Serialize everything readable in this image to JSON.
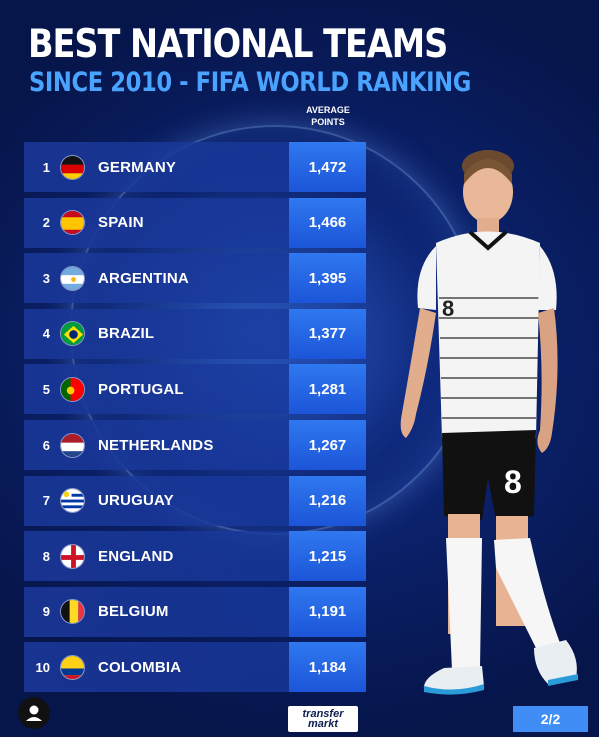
{
  "header": {
    "title": "BEST NATIONAL TEAMS",
    "subtitle": "SINCE 2010 - FIFA WORLD RANKING",
    "column_label_line1": "AVERAGE",
    "column_label_line2": "POINTS"
  },
  "chart_data": {
    "type": "table",
    "title": "BEST NATIONAL TEAMS",
    "subtitle": "SINCE 2010 - FIFA WORLD RANKING",
    "columns": [
      "",
      "",
      "AVERAGE POINTS"
    ],
    "rows": [
      {
        "rank": "1",
        "team": "GERMANY",
        "points": "1,472",
        "flag": "germany-flag"
      },
      {
        "rank": "2",
        "team": "SPAIN",
        "points": "1,466",
        "flag": "spain-flag"
      },
      {
        "rank": "3",
        "team": "ARGENTINA",
        "points": "1,395",
        "flag": "argentina-flag"
      },
      {
        "rank": "4",
        "team": "BRAZIL",
        "points": "1,377",
        "flag": "brazil-flag"
      },
      {
        "rank": "5",
        "team": "PORTUGAL",
        "points": "1,281",
        "flag": "portugal-flag"
      },
      {
        "rank": "6",
        "team": "NETHERLANDS",
        "points": "1,267",
        "flag": "netherlands-flag"
      },
      {
        "rank": "7",
        "team": "URUGUAY",
        "points": "1,216",
        "flag": "uruguay-flag"
      },
      {
        "rank": "8",
        "team": "ENGLAND",
        "points": "1,215",
        "flag": "england-flag"
      },
      {
        "rank": "9",
        "team": "BELGIUM",
        "points": "1,191",
        "flag": "belgium-flag"
      },
      {
        "rank": "10",
        "team": "COLOMBIA",
        "points": "1,184",
        "flag": "colombia-flag"
      }
    ]
  },
  "footer": {
    "logo_line1": "transfer",
    "logo_line2": "markt",
    "page_indicator": "2/2"
  },
  "player": {
    "shirt_number": "8"
  },
  "colors": {
    "background": "#0a1f66",
    "accent": "#4aa3ff",
    "points_box": "#2563e6"
  }
}
